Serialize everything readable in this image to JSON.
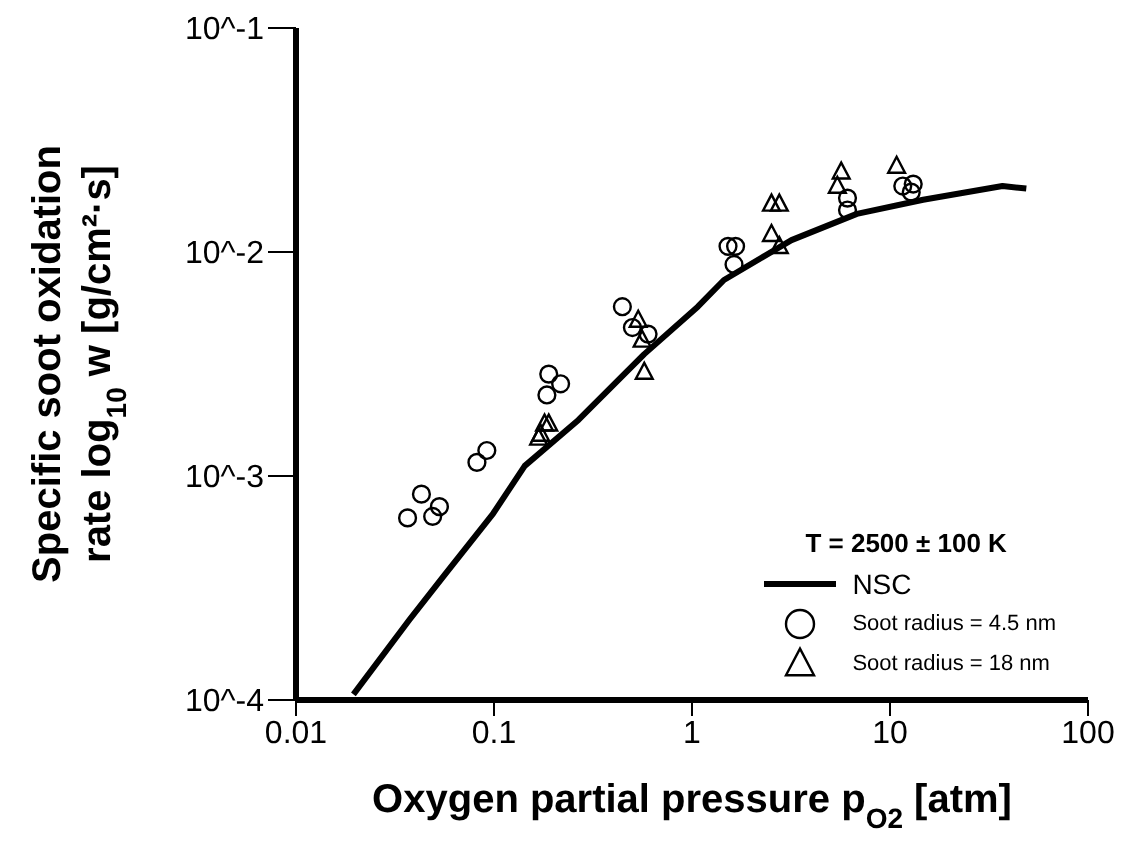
{
  "chart_data": {
    "type": "scatter",
    "xlabel": "Oxygen partial pressure p$_{O2}$ [atm]",
    "ylabel": "Specific soot oxidation rate log$_{10}$ w [g/cm²·s]",
    "legend_title": "T = 2500 ± 100 K",
    "log": "xy",
    "grid": false,
    "legend": "bottom right",
    "xlim": [
      0.01,
      100
    ],
    "xticks": [
      0.01,
      0.1,
      1,
      10,
      100
    ],
    "ylim": [
      0.0001,
      0.1
    ],
    "yticks": [
      {
        "value": 0.0001,
        "label": "10^-4"
      },
      {
        "value": 0.001,
        "label": "10^-3"
      },
      {
        "value": 0.01,
        "label": "10^-2"
      },
      {
        "value": 0.1,
        "label": "10^-1"
      }
    ],
    "series": [
      {
        "name": "NSC",
        "type": "line",
        "color": "#000000",
        "marker": "none",
        "line_style": "solid",
        "x": [
          0.0195,
          0.0374,
          0.0567,
          0.099,
          0.143,
          0.267,
          0.574,
          1.07,
          1.45,
          3.18,
          6.8,
          14.7,
          37,
          48.8
        ],
        "values": [
          0.000106,
          0.000228,
          0.000365,
          0.00068,
          0.00111,
          0.00178,
          0.0035,
          0.0057,
          0.0075,
          0.0113,
          0.0148,
          0.0171,
          0.0197,
          0.0192
        ]
      },
      {
        "name": "Soot radius = 4.5 nm",
        "color": "#000000",
        "marker": "circle",
        "x": [
          0.0366,
          0.043,
          0.049,
          0.053,
          0.082,
          0.092,
          0.189,
          0.217,
          0.185,
          0.445,
          0.5,
          0.6,
          1.52,
          1.66,
          1.63,
          6.1,
          6.1,
          11.6,
          13.1,
          12.8
        ],
        "values": [
          0.00065,
          0.00083,
          0.00066,
          0.00073,
          0.00115,
          0.0013,
          0.00285,
          0.00258,
          0.0023,
          0.0057,
          0.0046,
          0.0043,
          0.0106,
          0.0106,
          0.0088,
          0.0174,
          0.0154,
          0.0197,
          0.0201,
          0.0185
        ]
      },
      {
        "name": "Soot radius = 18 nm",
        "color": "#000000",
        "marker": "triangle",
        "x": [
          0.168,
          0.18,
          0.189,
          0.172,
          0.535,
          0.574,
          0.56,
          2.52,
          2.76,
          2.52,
          2.76,
          5.67,
          5.42,
          10.8
        ],
        "values": [
          0.00148,
          0.00171,
          0.00171,
          0.00154,
          0.00497,
          0.00291,
          0.00405,
          0.0164,
          0.0164,
          0.012,
          0.0106,
          0.0228,
          0.0197,
          0.0242
        ]
      }
    ]
  }
}
